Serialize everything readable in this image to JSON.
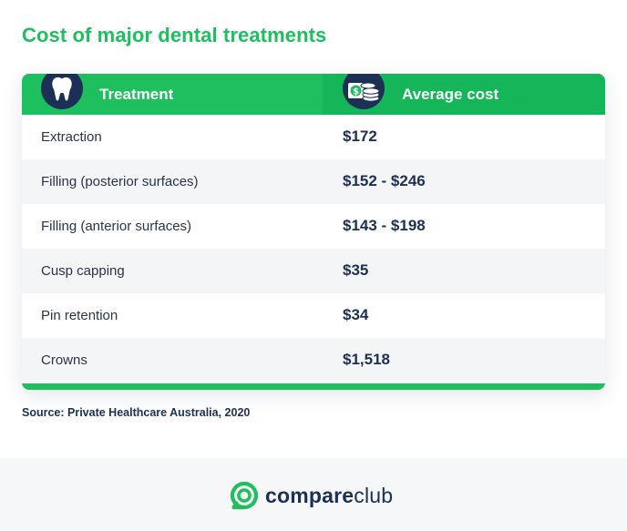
{
  "title": "Cost of major dental treatments",
  "table": {
    "headers": {
      "treatment": "Treatment",
      "cost": "Average cost"
    },
    "rows": [
      {
        "treatment": "Extraction",
        "cost": "$172"
      },
      {
        "treatment": "Filling (posterior surfaces)",
        "cost": "$152 - $246"
      },
      {
        "treatment": "Filling (anterior surfaces)",
        "cost": "$143 - $198"
      },
      {
        "treatment": "Cusp capping",
        "cost": "$35"
      },
      {
        "treatment": "Pin retention",
        "cost": "$34"
      },
      {
        "treatment": "Crowns",
        "cost": "$1,518"
      }
    ]
  },
  "source": "Source: Private Healthcare Australia, 2020",
  "brand": {
    "word1": "compare",
    "word2": "club",
    "accent_color": "#1dbf5e",
    "navy_color": "#1c2f55"
  },
  "icons": {
    "treatment": "tooth-icon",
    "cost": "money-icon"
  }
}
